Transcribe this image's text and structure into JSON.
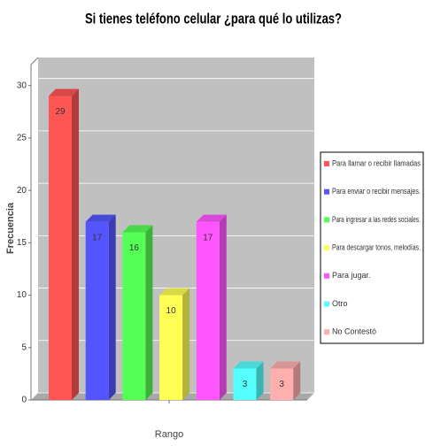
{
  "chart_data": {
    "type": "bar3d",
    "title": "Si tienes teléfono celular ¿para qué lo utilizas?",
    "y_label": "Frecuencia",
    "x_label": "Rango",
    "categories": [
      null
    ],
    "series": [
      {
        "name": "Para llamar o recibir llamadas",
        "color": "#ff5555",
        "values": [
          29
        ]
      },
      {
        "name": "Para enviar o recibir mensajes.",
        "color": "#5555ff",
        "values": [
          17
        ]
      },
      {
        "name": "Para ingresar a las redes sociales.",
        "color": "#55ff55",
        "values": [
          16
        ]
      },
      {
        "name": "Para descargar tonos, melodías.",
        "color": "#ffff55",
        "values": [
          10
        ]
      },
      {
        "name": "Para jugar.",
        "color": "#ff55ff",
        "values": [
          17
        ]
      },
      {
        "name": "Otro",
        "color": "#55ffff",
        "values": [
          3
        ]
      },
      {
        "name": "No Contestó",
        "color": "#ffafaf",
        "values": [
          3
        ]
      }
    ],
    "ylim": [
      0,
      32
    ],
    "yticks": [
      0,
      5,
      10,
      15,
      20,
      25,
      30
    ],
    "grid": true,
    "legend": "right"
  }
}
